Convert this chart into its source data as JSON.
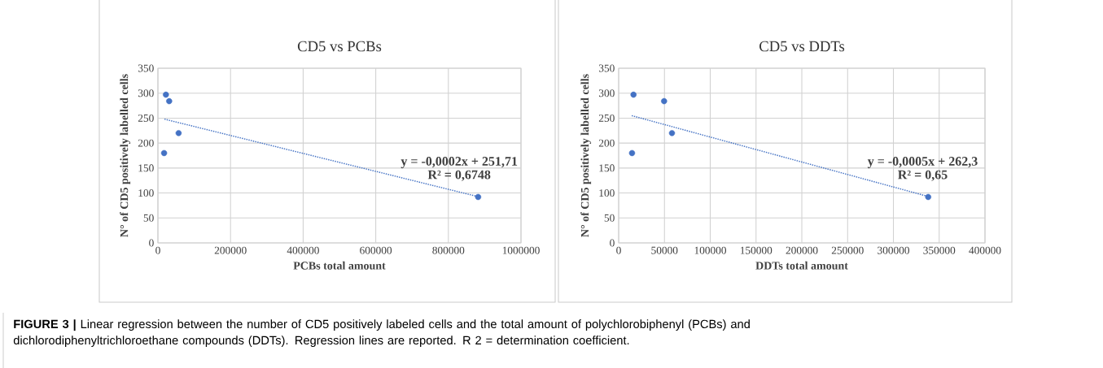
{
  "chart_data": [
    {
      "type": "scatter",
      "title": "CD5 vs PCBs",
      "xlabel": "PCBs total amount",
      "ylabel": "N° of CD5 positively labelled cells",
      "xlim": [
        0,
        1000000
      ],
      "xticks": [
        0,
        200000,
        400000,
        600000,
        800000,
        1000000
      ],
      "ylim": [
        0,
        350
      ],
      "yticks": [
        0,
        50,
        100,
        150,
        200,
        250,
        300,
        350
      ],
      "grid": true,
      "series": [
        {
          "color": "#4472c4",
          "marker": "circle",
          "x": [
            22000,
            31000,
            57000,
            17000,
            882000
          ],
          "values": [
            297,
            284,
            220,
            180,
            92
          ]
        },
        {
          "type": "line",
          "color": "#4472c4",
          "line_style": "dotted",
          "marker": "none",
          "x": [
            18000,
            880000
          ],
          "values": [
            248,
            93
          ]
        }
      ],
      "annotations": [
        "y = -0,0002x + 251,71",
        "R² = 0,6748",
        "**FIGURE 3 |** Linear regression between the number of CD5 positively labeled cells and the total amount of polychlorobiphenyl (PCBs) and dichlorodiphenyltrichloroethane compounds (DDTs). Regression lines are reported. R 2 = determination coefficient."
      ]
    },
    {
      "type": "scatter",
      "title": "CD5 vs DDTs",
      "xlabel": "DDTs total amount",
      "ylabel": "N° of CD5 positively labelled cells",
      "xlim": [
        0,
        400000
      ],
      "xticks": [
        0,
        50000,
        100000,
        150000,
        200000,
        250000,
        300000,
        350000,
        400000
      ],
      "ylim": [
        0,
        350
      ],
      "yticks": [
        0,
        50,
        100,
        150,
        200,
        250,
        300,
        350
      ],
      "grid": true,
      "series": [
        {
          "color": "#4472c4",
          "marker": "circle",
          "x": [
            16200,
            49600,
            58200,
            14600,
            338000
          ],
          "values": [
            297,
            284,
            220,
            180,
            92
          ]
        },
        {
          "type": "line",
          "color": "#4472c4",
          "line_style": "dotted",
          "marker": "none",
          "x": [
            14300,
            338000
          ],
          "values": [
            255,
            93
          ]
        }
      ],
      "annotations": [
        "y = -0,0005x + 262,3",
        "R² = 0,65"
      ]
    }
  ]
}
